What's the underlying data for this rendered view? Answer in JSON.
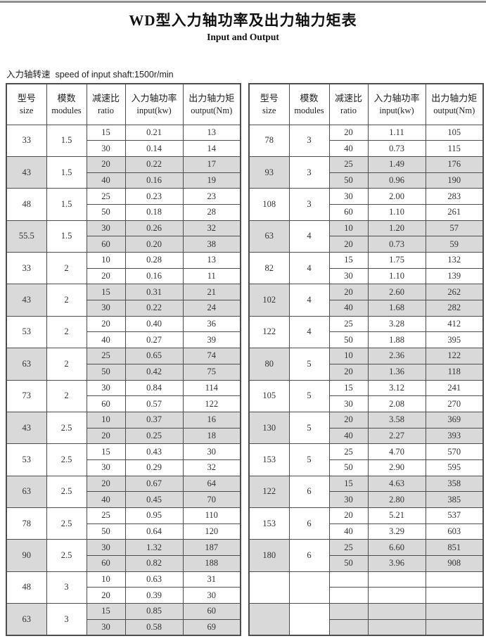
{
  "page": {
    "title": "WD型入力轴功率及出力轴力矩表",
    "subtitle": "Input and Output",
    "speed_note_zh": "入力轴转速",
    "speed_note_en": "speed of input shaft:1500r/min"
  },
  "colors": {
    "shade": "#d9d9d9",
    "border": "#4d4d4d",
    "inner_divider": "#777777",
    "top_bar": "#8f8f8f"
  },
  "table": {
    "headers": {
      "size": {
        "zh": "型号",
        "en": "size"
      },
      "modules": {
        "zh": "模数",
        "en": "modules"
      },
      "ratio": {
        "zh": "减速比",
        "en": "ratio"
      },
      "input": {
        "zh": "入力轴功率",
        "en": "input(kw)"
      },
      "output": {
        "zh": "出力轴力矩",
        "en": "output(Nm)"
      }
    },
    "left_groups": [
      {
        "size": "33",
        "modules": "1.5",
        "shaded": false,
        "rows": [
          [
            "15",
            "0.21",
            "13"
          ],
          [
            "30",
            "0.14",
            "14"
          ]
        ]
      },
      {
        "size": "43",
        "modules": "1.5",
        "shaded": true,
        "rows": [
          [
            "20",
            "0.22",
            "17"
          ],
          [
            "40",
            "0.16",
            "19"
          ]
        ]
      },
      {
        "size": "48",
        "modules": "1.5",
        "shaded": false,
        "rows": [
          [
            "25",
            "0.23",
            "23"
          ],
          [
            "50",
            "0.18",
            "28"
          ]
        ]
      },
      {
        "size": "55.5",
        "modules": "1.5",
        "shaded": true,
        "rows": [
          [
            "30",
            "0.26",
            "32"
          ],
          [
            "60",
            "0.20",
            "38"
          ]
        ]
      },
      {
        "size": "33",
        "modules": "2",
        "shaded": false,
        "rows": [
          [
            "10",
            "0.28",
            "13"
          ],
          [
            "20",
            "0.16",
            "11"
          ]
        ]
      },
      {
        "size": "43",
        "modules": "2",
        "shaded": true,
        "rows": [
          [
            "15",
            "0.31",
            "21"
          ],
          [
            "30",
            "0.22",
            "24"
          ]
        ]
      },
      {
        "size": "53",
        "modules": "2",
        "shaded": false,
        "rows": [
          [
            "20",
            "0.40",
            "36"
          ],
          [
            "40",
            "0.27",
            "39"
          ]
        ]
      },
      {
        "size": "63",
        "modules": "2",
        "shaded": true,
        "rows": [
          [
            "25",
            "0.65",
            "74"
          ],
          [
            "50",
            "0.42",
            "75"
          ]
        ]
      },
      {
        "size": "73",
        "modules": "2",
        "shaded": false,
        "rows": [
          [
            "30",
            "0.84",
            "114"
          ],
          [
            "60",
            "0.57",
            "122"
          ]
        ]
      },
      {
        "size": "43",
        "modules": "2.5",
        "shaded": true,
        "rows": [
          [
            "10",
            "0.37",
            "16"
          ],
          [
            "20",
            "0.25",
            "18"
          ]
        ]
      },
      {
        "size": "53",
        "modules": "2.5",
        "shaded": false,
        "rows": [
          [
            "15",
            "0.43",
            "30"
          ],
          [
            "30",
            "0.29",
            "32"
          ]
        ]
      },
      {
        "size": "63",
        "modules": "2.5",
        "shaded": true,
        "rows": [
          [
            "20",
            "0.67",
            "64"
          ],
          [
            "40",
            "0.45",
            "70"
          ]
        ]
      },
      {
        "size": "78",
        "modules": "2.5",
        "shaded": false,
        "rows": [
          [
            "25",
            "0.95",
            "110"
          ],
          [
            "50",
            "0.64",
            "120"
          ]
        ]
      },
      {
        "size": "90",
        "modules": "2.5",
        "shaded": true,
        "rows": [
          [
            "30",
            "1.32",
            "187"
          ],
          [
            "60",
            "0.82",
            "188"
          ]
        ]
      },
      {
        "size": "48",
        "modules": "3",
        "shaded": false,
        "rows": [
          [
            "10",
            "0.63",
            "31"
          ],
          [
            "20",
            "0.39",
            "30"
          ]
        ]
      },
      {
        "size": "63",
        "modules": "3",
        "shaded": true,
        "rows": [
          [
            "15",
            "0.85",
            "60"
          ],
          [
            "30",
            "0.58",
            "69"
          ]
        ]
      }
    ],
    "right_groups": [
      {
        "size": "78",
        "modules": "3",
        "shaded": false,
        "rows": [
          [
            "20",
            "1.11",
            "105"
          ],
          [
            "40",
            "0.73",
            "115"
          ]
        ]
      },
      {
        "size": "93",
        "modules": "3",
        "shaded": true,
        "rows": [
          [
            "25",
            "1.49",
            "176"
          ],
          [
            "50",
            "0.96",
            "190"
          ]
        ]
      },
      {
        "size": "108",
        "modules": "3",
        "shaded": false,
        "rows": [
          [
            "30",
            "2.00",
            "283"
          ],
          [
            "60",
            "1.10",
            "261"
          ]
        ]
      },
      {
        "size": "63",
        "modules": "4",
        "shaded": true,
        "rows": [
          [
            "10",
            "1.20",
            "57"
          ],
          [
            "20",
            "0.73",
            "59"
          ]
        ]
      },
      {
        "size": "82",
        "modules": "4",
        "shaded": false,
        "rows": [
          [
            "15",
            "1.75",
            "132"
          ],
          [
            "30",
            "1.10",
            "139"
          ]
        ]
      },
      {
        "size": "102",
        "modules": "4",
        "shaded": true,
        "rows": [
          [
            "20",
            "2.60",
            "262"
          ],
          [
            "40",
            "1.68",
            "282"
          ]
        ]
      },
      {
        "size": "122",
        "modules": "4",
        "shaded": false,
        "rows": [
          [
            "25",
            "3.28",
            "412"
          ],
          [
            "50",
            "1.88",
            "395"
          ]
        ]
      },
      {
        "size": "80",
        "modules": "5",
        "shaded": true,
        "rows": [
          [
            "10",
            "2.36",
            "122"
          ],
          [
            "20",
            "1.36",
            "118"
          ]
        ]
      },
      {
        "size": "105",
        "modules": "5",
        "shaded": false,
        "rows": [
          [
            "15",
            "3.12",
            "241"
          ],
          [
            "30",
            "2.08",
            "270"
          ]
        ]
      },
      {
        "size": "130",
        "modules": "5",
        "shaded": true,
        "rows": [
          [
            "20",
            "3.58",
            "369"
          ],
          [
            "40",
            "2.27",
            "393"
          ]
        ]
      },
      {
        "size": "153",
        "modules": "5",
        "shaded": false,
        "rows": [
          [
            "25",
            "4.70",
            "570"
          ],
          [
            "50",
            "2.90",
            "595"
          ]
        ]
      },
      {
        "size": "122",
        "modules": "6",
        "shaded": true,
        "rows": [
          [
            "15",
            "4.63",
            "358"
          ],
          [
            "30",
            "2.80",
            "385"
          ]
        ]
      },
      {
        "size": "153",
        "modules": "6",
        "shaded": false,
        "rows": [
          [
            "20",
            "5.21",
            "537"
          ],
          [
            "40",
            "3.29",
            "603"
          ]
        ]
      },
      {
        "size": "180",
        "modules": "6",
        "shaded": true,
        "rows": [
          [
            "25",
            "6.60",
            "851"
          ],
          [
            "50",
            "3.96",
            "908"
          ]
        ]
      },
      {
        "size": "",
        "modules": "",
        "shaded": false,
        "rows": [
          [
            "",
            "",
            ""
          ],
          [
            "",
            "",
            ""
          ]
        ]
      },
      {
        "size": "",
        "modules": "",
        "shaded": true,
        "rows": [
          [
            "",
            "",
            ""
          ],
          [
            "",
            "",
            ""
          ]
        ]
      }
    ]
  }
}
